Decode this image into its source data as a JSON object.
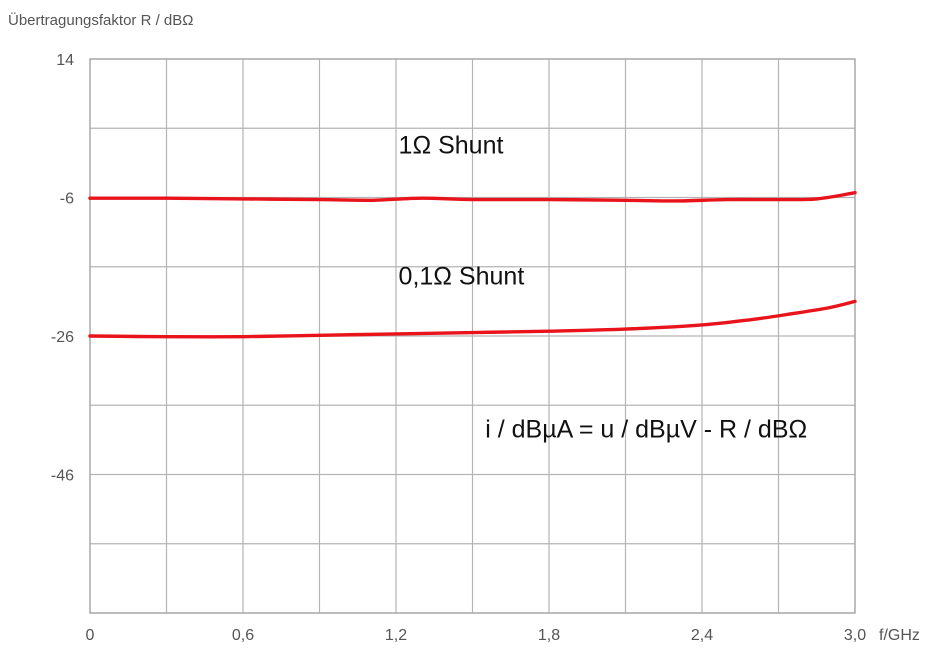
{
  "chart_data": {
    "type": "line",
    "ylabel": "Übertragungsfaktor R / dBΩ",
    "xlabel": "f/GHz",
    "xlim": [
      0,
      3.0
    ],
    "ylim": [
      -66,
      14
    ],
    "x_ticks": [
      {
        "value": 0,
        "label": "0"
      },
      {
        "value": 0.6,
        "label": "0,6"
      },
      {
        "value": 1.2,
        "label": "1,2"
      },
      {
        "value": 1.8,
        "label": "1,8"
      },
      {
        "value": 2.4,
        "label": "2,4"
      },
      {
        "value": 3.0,
        "label": "3,0"
      }
    ],
    "x_grid": [
      0,
      0.3,
      0.6,
      0.9,
      1.2,
      1.5,
      1.8,
      2.1,
      2.4,
      2.7,
      3.0
    ],
    "y_ticks": [
      {
        "value": 14,
        "label": "14"
      },
      {
        "value": -6,
        "label": "-6"
      },
      {
        "value": -26,
        "label": "-26"
      },
      {
        "value": -46,
        "label": "-46"
      }
    ],
    "y_grid": [
      14,
      4,
      -6,
      -16,
      -26,
      -36,
      -46,
      -56,
      -66
    ],
    "grid": true,
    "series": [
      {
        "name": "1Ω Shunt",
        "color": "#e8131b",
        "x": [
          0,
          0.3,
          0.6,
          0.9,
          1.1,
          1.3,
          1.5,
          1.8,
          2.1,
          2.3,
          2.5,
          2.7,
          2.85,
          3.0
        ],
        "y": [
          -6.1,
          -6.1,
          -6.2,
          -6.3,
          -6.4,
          -6.1,
          -6.3,
          -6.3,
          -6.4,
          -6.5,
          -6.3,
          -6.3,
          -6.2,
          -5.3
        ]
      },
      {
        "name": "0,1Ω Shunt",
        "color": "#e8131b",
        "x": [
          0,
          0.3,
          0.6,
          0.9,
          1.2,
          1.5,
          1.8,
          2.1,
          2.4,
          2.6,
          2.75,
          2.9,
          3.0
        ],
        "y": [
          -26.0,
          -26.1,
          -26.1,
          -25.9,
          -25.7,
          -25.5,
          -25.3,
          -25.0,
          -24.4,
          -23.6,
          -22.8,
          -21.9,
          -21.0
        ]
      }
    ],
    "annotations": [
      {
        "text": "1Ω Shunt",
        "x": 1.21,
        "y": 1.5
      },
      {
        "text": "0,1Ω Shunt",
        "x": 1.21,
        "y": -17.4
      },
      {
        "text": "i / dBµA = u / dBµV - R / dBΩ",
        "x": 1.55,
        "y": -39.5
      }
    ]
  }
}
